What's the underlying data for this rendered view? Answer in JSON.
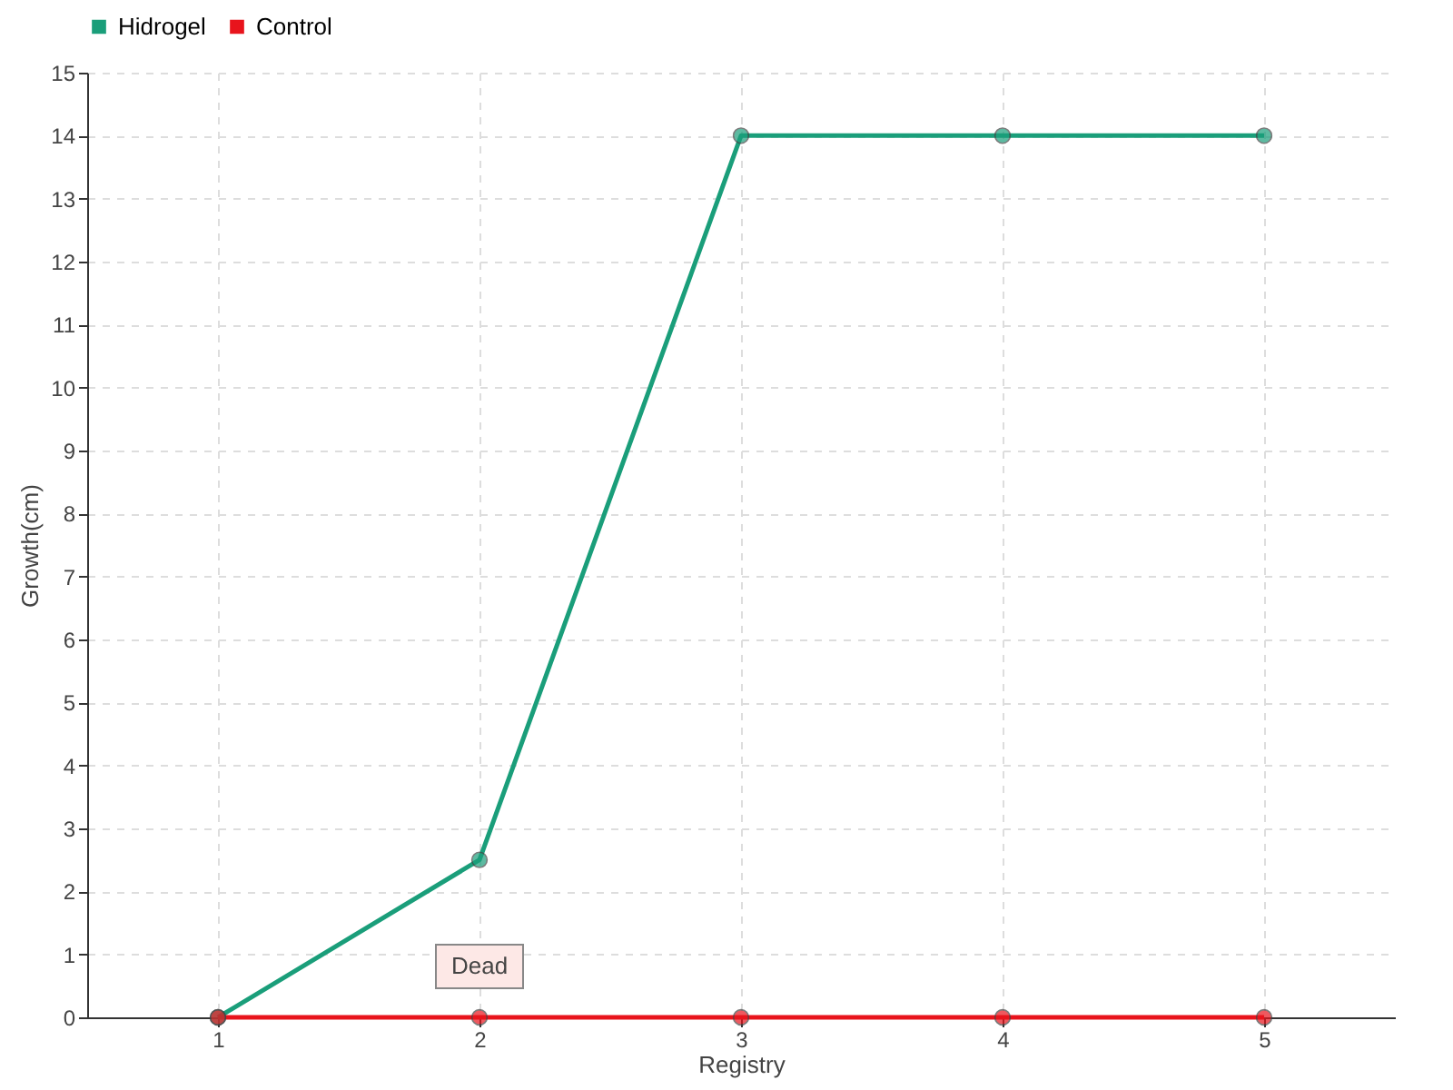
{
  "chart_data": {
    "type": "line",
    "xlabel": "Registry",
    "ylabel": "Growth(cm)",
    "categories": [
      "1",
      "2",
      "3",
      "4",
      "5"
    ],
    "series": [
      {
        "name": "Hidrogel",
        "color": "#1a9e7a",
        "values": [
          0,
          2.5,
          14,
          14,
          14
        ]
      },
      {
        "name": "Control",
        "color": "#e8141c",
        "values": [
          0,
          0,
          0,
          0,
          0
        ]
      }
    ],
    "ylim": [
      0,
      15
    ],
    "yticks": [
      0,
      1,
      2,
      3,
      4,
      5,
      6,
      7,
      8,
      9,
      10,
      11,
      12,
      13,
      14,
      15
    ],
    "grid": true,
    "legend": "top left",
    "marker": "circle",
    "line_style": "solid",
    "annotations": [
      {
        "text": "Dead",
        "x": "2",
        "y": 0
      }
    ]
  }
}
